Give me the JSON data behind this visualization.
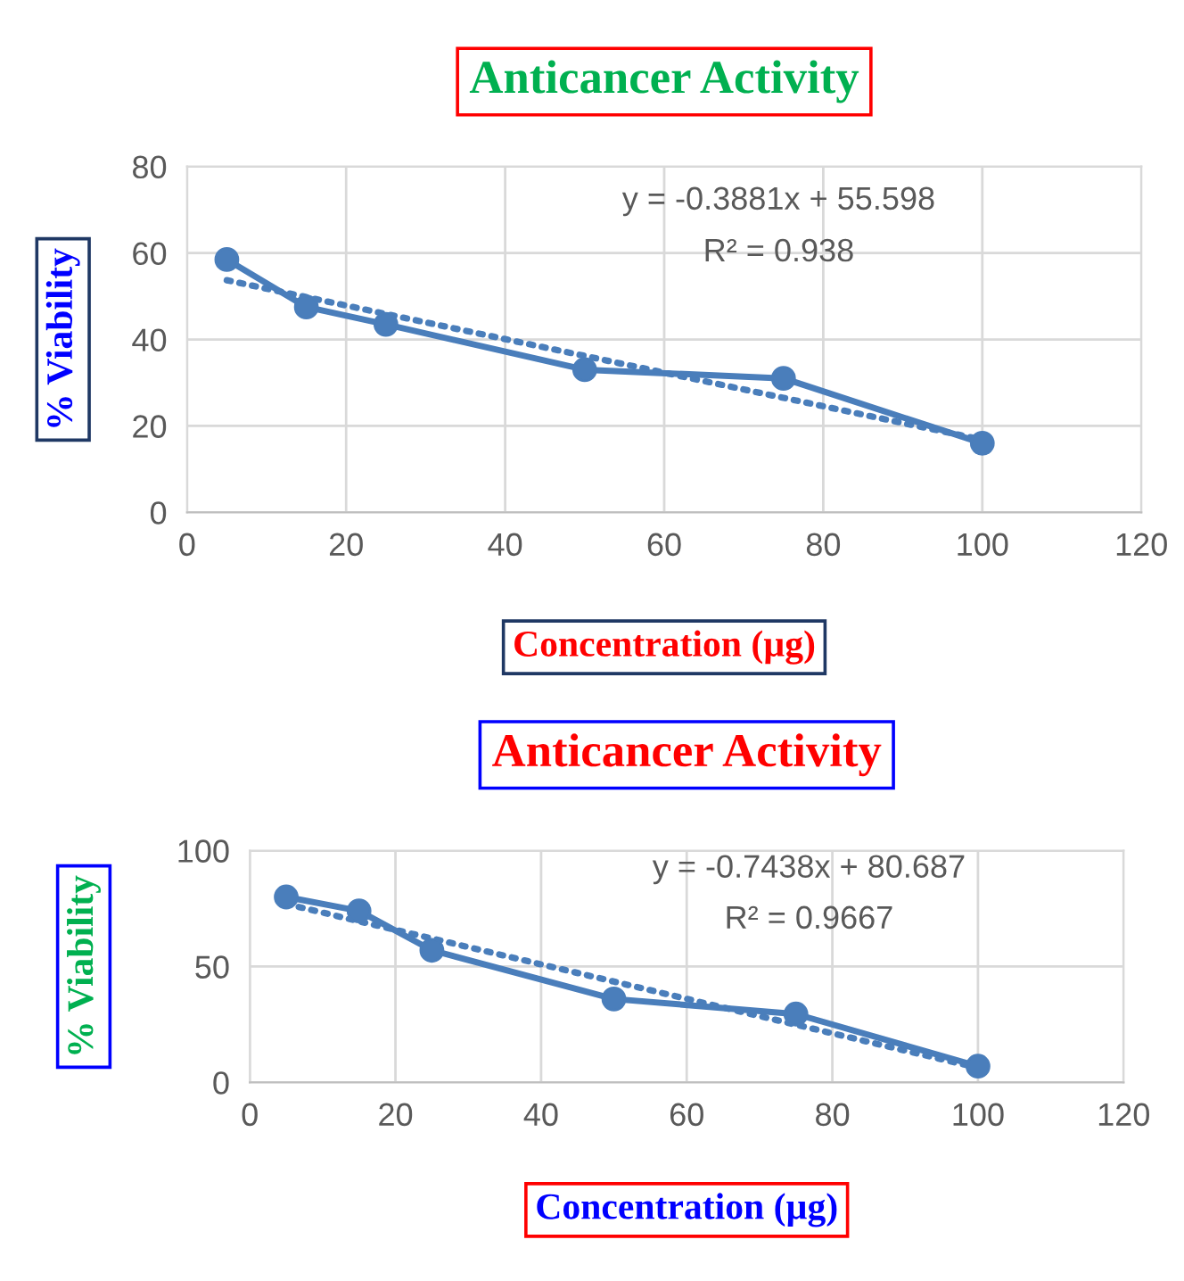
{
  "chart_data": [
    {
      "type": "line",
      "title": "Anticancer Activity",
      "xlabel": "Concentration (µg)",
      "ylabel": "% Viability",
      "x": [
        5,
        15,
        25,
        50,
        75,
        100
      ],
      "series": [
        {
          "color": "#4a7ebb",
          "values": [
            58.5,
            47.5,
            43.5,
            33,
            31,
            16
          ],
          "marker": "circle",
          "line_style": "solid"
        },
        {
          "color": "#4a7ebb",
          "values": [
            53.7,
            49.8,
            45.9,
            36.2,
            26.5,
            16.8
          ],
          "marker": "none",
          "line_style": "dotted"
        }
      ],
      "annotations": [
        "y = -0.3881x + 55.598",
        "R² = 0.938"
      ],
      "xlim": [
        0,
        120
      ],
      "xticks": [
        0,
        20,
        40,
        60,
        80,
        100,
        120
      ],
      "ylim": [
        0,
        80
      ],
      "yticks": [
        0,
        20,
        40,
        60,
        80
      ],
      "grid": true,
      "legend": false
    },
    {
      "type": "line",
      "title": "Anticancer Activity",
      "xlabel": "Concentration (µg)",
      "ylabel": "% Viability",
      "x": [
        5,
        15,
        25,
        50,
        75,
        100
      ],
      "series": [
        {
          "color": "#4a7ebb",
          "values": [
            80,
            74,
            57,
            36,
            29.5,
            7
          ],
          "marker": "circle",
          "line_style": "solid"
        },
        {
          "color": "#4a7ebb",
          "values": [
            77.0,
            69.5,
            62.1,
            43.5,
            24.9,
            6.3
          ],
          "marker": "none",
          "line_style": "dotted"
        }
      ],
      "annotations": [
        "y = -0.7438x + 80.687",
        "R² = 0.9667"
      ],
      "xlim": [
        0,
        120
      ],
      "xticks": [
        0,
        20,
        40,
        60,
        80,
        100,
        120
      ],
      "ylim": [
        0,
        100
      ],
      "yticks": [
        0,
        50,
        100
      ],
      "grid": true,
      "legend": false
    }
  ]
}
